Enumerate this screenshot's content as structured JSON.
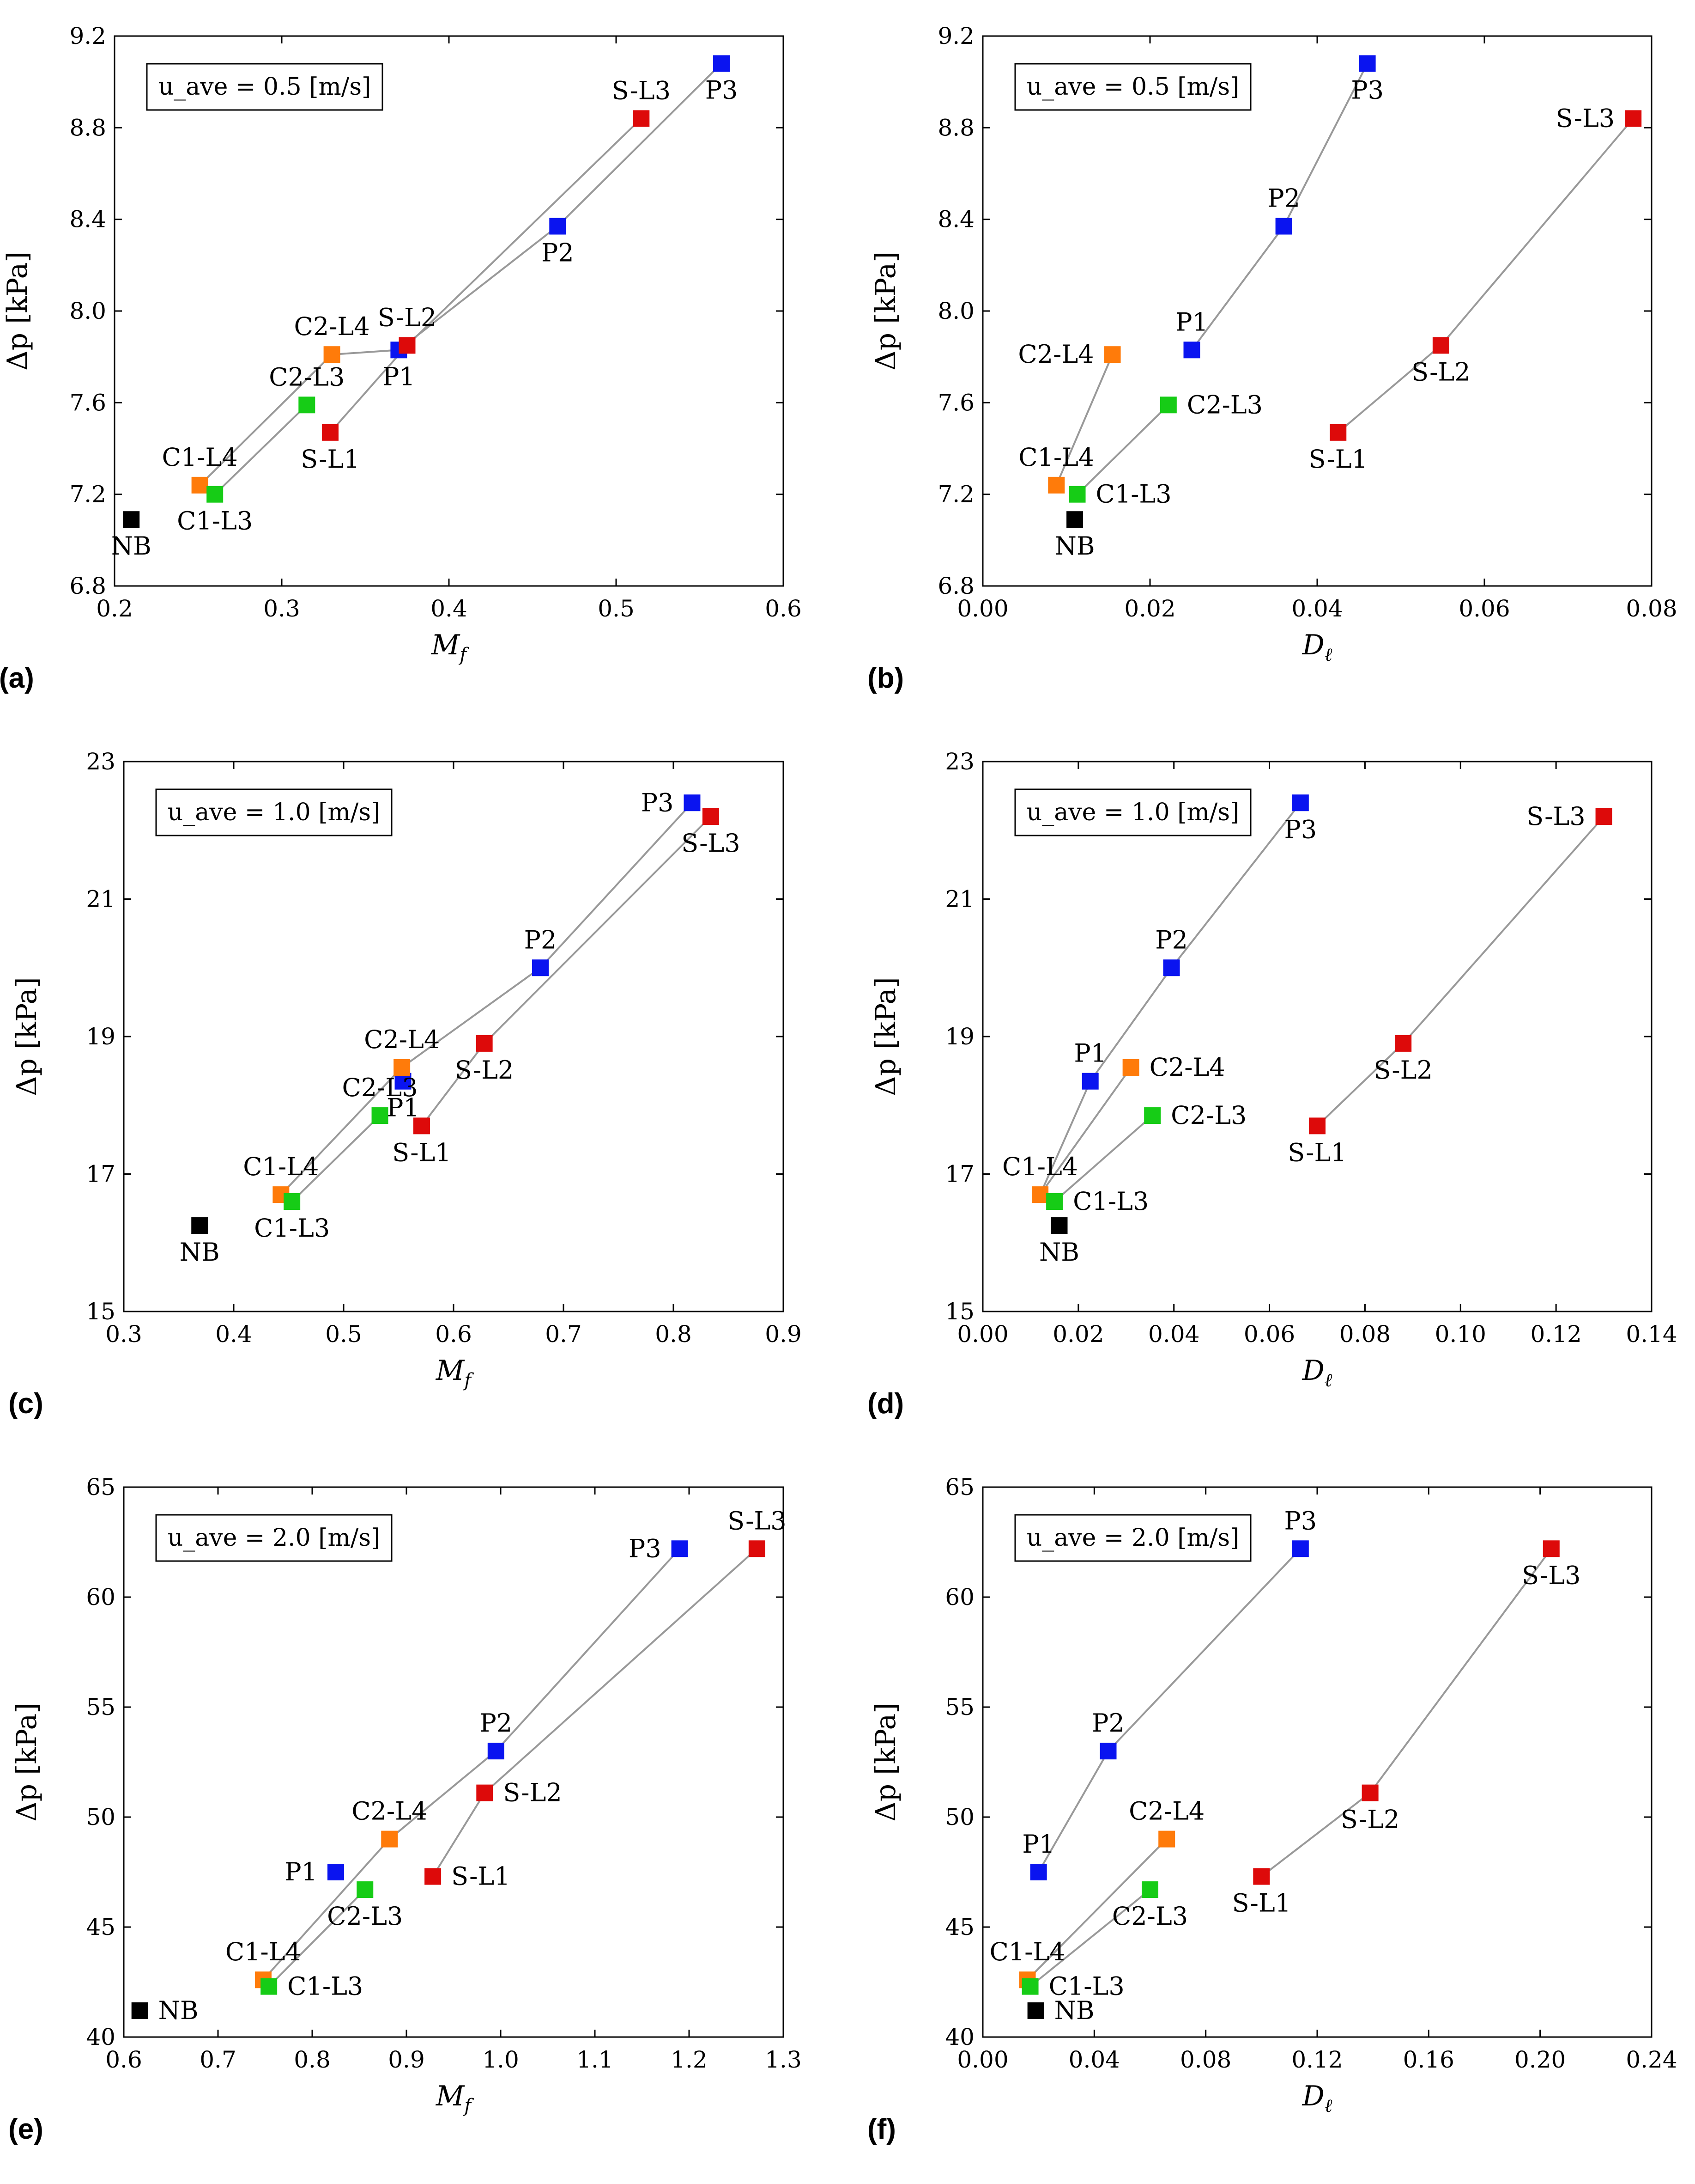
{
  "colors": {
    "P": "#0a14f0",
    "S": "#dd0a0a",
    "C4": "#ff7b0a",
    "C3": "#16cc16",
    "NB": "#000000",
    "line": "#999999"
  },
  "chart_data": [
    {
      "type": "scatter",
      "panel": "(a)",
      "annotation": "u_ave = 0.5 [m/s]",
      "xlabel": "M_f",
      "ylabel": "Δp [kPa]",
      "xlim": [
        0.2,
        0.6
      ],
      "ylim": [
        6.8,
        9.2
      ],
      "xticks": [
        "0.2",
        "0.3",
        "0.4",
        "0.5",
        "0.6"
      ],
      "yticks": [
        "6.8",
        "7.2",
        "7.6",
        "8.0",
        "8.4",
        "8.8",
        "9.2"
      ],
      "points": [
        {
          "label": "P1",
          "x": 0.37,
          "y": 7.83,
          "group": "P",
          "pos": "below"
        },
        {
          "label": "P2",
          "x": 0.465,
          "y": 8.37,
          "group": "P",
          "pos": "below"
        },
        {
          "label": "P3",
          "x": 0.563,
          "y": 9.08,
          "group": "P",
          "pos": "below"
        },
        {
          "label": "S-L1",
          "x": 0.329,
          "y": 7.47,
          "group": "S",
          "pos": "below"
        },
        {
          "label": "S-L2",
          "x": 0.375,
          "y": 7.85,
          "group": "S",
          "pos": "above"
        },
        {
          "label": "S-L3",
          "x": 0.515,
          "y": 8.84,
          "group": "S",
          "pos": "above"
        },
        {
          "label": "C1-L4",
          "x": 0.251,
          "y": 7.24,
          "group": "C4",
          "pos": "above"
        },
        {
          "label": "C2-L4",
          "x": 0.33,
          "y": 7.81,
          "group": "C4",
          "pos": "above"
        },
        {
          "label": "C1-L3",
          "x": 0.26,
          "y": 7.2,
          "group": "C3",
          "pos": "below"
        },
        {
          "label": "C2-L3",
          "x": 0.315,
          "y": 7.59,
          "group": "C3",
          "pos": "above"
        },
        {
          "label": "NB",
          "x": 0.21,
          "y": 7.09,
          "group": "NB",
          "pos": "below"
        }
      ],
      "lines": [
        [
          "C1-L4",
          "C2-L4",
          "P1",
          "P2",
          "P3"
        ],
        [
          "C1-L3",
          "C2-L3"
        ],
        [
          "S-L1",
          "S-L2",
          "S-L3"
        ]
      ]
    },
    {
      "type": "scatter",
      "panel": "(b)",
      "annotation": "u_ave = 0.5 [m/s]",
      "xlabel": "D_ℓ",
      "ylabel": "Δp [kPa]",
      "xlim": [
        0.0,
        0.08
      ],
      "ylim": [
        6.8,
        9.2
      ],
      "xticks": [
        "0.00",
        "0.02",
        "0.04",
        "0.06",
        "0.08"
      ],
      "yticks": [
        "6.8",
        "7.2",
        "7.6",
        "8.0",
        "8.4",
        "8.8",
        "9.2"
      ],
      "points": [
        {
          "label": "P1",
          "x": 0.025,
          "y": 7.83,
          "group": "P",
          "pos": "above"
        },
        {
          "label": "P2",
          "x": 0.036,
          "y": 8.37,
          "group": "P",
          "pos": "above"
        },
        {
          "label": "P3",
          "x": 0.046,
          "y": 9.08,
          "group": "P",
          "pos": "below"
        },
        {
          "label": "S-L1",
          "x": 0.0425,
          "y": 7.47,
          "group": "S",
          "pos": "below"
        },
        {
          "label": "S-L2",
          "x": 0.0548,
          "y": 7.85,
          "group": "S",
          "pos": "below"
        },
        {
          "label": "S-L3",
          "x": 0.0778,
          "y": 8.84,
          "group": "S",
          "pos": "left"
        },
        {
          "label": "C1-L4",
          "x": 0.0088,
          "y": 7.24,
          "group": "C4",
          "pos": "above"
        },
        {
          "label": "C2-L4",
          "x": 0.0155,
          "y": 7.81,
          "group": "C4",
          "pos": "left"
        },
        {
          "label": "C1-L3",
          "x": 0.0113,
          "y": 7.2,
          "group": "C3",
          "pos": "right"
        },
        {
          "label": "C2-L3",
          "x": 0.0222,
          "y": 7.59,
          "group": "C3",
          "pos": "right"
        },
        {
          "label": "NB",
          "x": 0.011,
          "y": 7.09,
          "group": "NB",
          "pos": "below"
        }
      ],
      "lines": [
        [
          "P1",
          "P2",
          "P3"
        ],
        [
          "S-L1",
          "S-L2",
          "S-L3"
        ],
        [
          "C1-L4",
          "C2-L4"
        ],
        [
          "C1-L3",
          "C2-L3"
        ]
      ]
    },
    {
      "type": "scatter",
      "panel": "(c)",
      "annotation": "u_ave = 1.0 [m/s]",
      "xlabel": "M_f",
      "ylabel": "Δp [kPa]",
      "xlim": [
        0.3,
        0.9
      ],
      "ylim": [
        15,
        23
      ],
      "xticks": [
        "0.3",
        "0.4",
        "0.5",
        "0.6",
        "0.7",
        "0.8",
        "0.9"
      ],
      "yticks": [
        "15",
        "17",
        "19",
        "21",
        "23"
      ],
      "points": [
        {
          "label": "P1",
          "x": 0.554,
          "y": 18.35,
          "group": "P",
          "pos": "below"
        },
        {
          "label": "P2",
          "x": 0.679,
          "y": 20.0,
          "group": "P",
          "pos": "above"
        },
        {
          "label": "P3",
          "x": 0.817,
          "y": 22.4,
          "group": "P",
          "pos": "left"
        },
        {
          "label": "S-L1",
          "x": 0.571,
          "y": 17.7,
          "group": "S",
          "pos": "below"
        },
        {
          "label": "S-L2",
          "x": 0.628,
          "y": 18.9,
          "group": "S",
          "pos": "below"
        },
        {
          "label": "S-L3",
          "x": 0.834,
          "y": 22.2,
          "group": "S",
          "pos": "below"
        },
        {
          "label": "C1-L4",
          "x": 0.443,
          "y": 16.7,
          "group": "C4",
          "pos": "above"
        },
        {
          "label": "C2-L4",
          "x": 0.553,
          "y": 18.55,
          "group": "C4",
          "pos": "above"
        },
        {
          "label": "C1-L3",
          "x": 0.453,
          "y": 16.6,
          "group": "C3",
          "pos": "below"
        },
        {
          "label": "C2-L3",
          "x": 0.533,
          "y": 17.85,
          "group": "C3",
          "pos": "above"
        },
        {
          "label": "NB",
          "x": 0.369,
          "y": 16.25,
          "group": "NB",
          "pos": "below"
        }
      ],
      "lines": [
        [
          "C1-L4",
          "C2-L4",
          "P2",
          "P3"
        ],
        [
          "C1-L3",
          "C2-L3"
        ],
        [
          "S-L1",
          "S-L2",
          "S-L3"
        ]
      ]
    },
    {
      "type": "scatter",
      "panel": "(d)",
      "annotation": "u_ave = 1.0 [m/s]",
      "xlabel": "D_ℓ",
      "ylabel": "Δp [kPa]",
      "xlim": [
        0.0,
        0.14
      ],
      "ylim": [
        15,
        23
      ],
      "xticks": [
        "0.00",
        "0.02",
        "0.04",
        "0.06",
        "0.08",
        "0.10",
        "0.12",
        "0.14"
      ],
      "yticks": [
        "15",
        "17",
        "19",
        "21",
        "23"
      ],
      "points": [
        {
          "label": "P1",
          "x": 0.0225,
          "y": 18.35,
          "group": "P",
          "pos": "above"
        },
        {
          "label": "P2",
          "x": 0.0395,
          "y": 20.0,
          "group": "P",
          "pos": "above"
        },
        {
          "label": "P3",
          "x": 0.0665,
          "y": 22.4,
          "group": "P",
          "pos": "below"
        },
        {
          "label": "S-L1",
          "x": 0.07,
          "y": 17.7,
          "group": "S",
          "pos": "below"
        },
        {
          "label": "S-L2",
          "x": 0.088,
          "y": 18.9,
          "group": "S",
          "pos": "below"
        },
        {
          "label": "S-L3",
          "x": 0.13,
          "y": 22.2,
          "group": "S",
          "pos": "left"
        },
        {
          "label": "C1-L4",
          "x": 0.012,
          "y": 16.7,
          "group": "C4",
          "pos": "above"
        },
        {
          "label": "C2-L4",
          "x": 0.031,
          "y": 18.55,
          "group": "C4",
          "pos": "right"
        },
        {
          "label": "C1-L3",
          "x": 0.015,
          "y": 16.6,
          "group": "C3",
          "pos": "right"
        },
        {
          "label": "C2-L3",
          "x": 0.0355,
          "y": 17.85,
          "group": "C3",
          "pos": "right"
        },
        {
          "label": "NB",
          "x": 0.016,
          "y": 16.25,
          "group": "NB",
          "pos": "below"
        }
      ],
      "lines": [
        [
          "C1-L4",
          "P1",
          "P2",
          "P3"
        ],
        [
          "S-L1",
          "S-L2",
          "S-L3"
        ],
        [
          "C1-L3",
          "C2-L3"
        ],
        [
          "C1-L4",
          "C2-L4"
        ]
      ]
    },
    {
      "type": "scatter",
      "panel": "(e)",
      "annotation": "u_ave = 2.0 [m/s]",
      "xlabel": "M_f",
      "ylabel": "Δp [kPa]",
      "xlim": [
        0.6,
        1.3
      ],
      "ylim": [
        40,
        65
      ],
      "xticks": [
        "0.6",
        "0.7",
        "0.8",
        "0.9",
        "1.0",
        "1.1",
        "1.2",
        "1.3"
      ],
      "yticks": [
        "40",
        "45",
        "50",
        "55",
        "60",
        "65"
      ],
      "points": [
        {
          "label": "P1",
          "x": 0.825,
          "y": 47.5,
          "group": "P",
          "pos": "left"
        },
        {
          "label": "P2",
          "x": 0.995,
          "y": 53.0,
          "group": "P",
          "pos": "above"
        },
        {
          "label": "P3",
          "x": 1.19,
          "y": 62.2,
          "group": "P",
          "pos": "left"
        },
        {
          "label": "S-L1",
          "x": 0.928,
          "y": 47.3,
          "group": "S",
          "pos": "right"
        },
        {
          "label": "S-L2",
          "x": 0.983,
          "y": 51.1,
          "group": "S",
          "pos": "right"
        },
        {
          "label": "S-L3",
          "x": 1.272,
          "y": 62.2,
          "group": "S",
          "pos": "above"
        },
        {
          "label": "C1-L4",
          "x": 0.748,
          "y": 42.6,
          "group": "C4",
          "pos": "above"
        },
        {
          "label": "C2-L4",
          "x": 0.882,
          "y": 49.0,
          "group": "C4",
          "pos": "above"
        },
        {
          "label": "C1-L3",
          "x": 0.754,
          "y": 42.3,
          "group": "C3",
          "pos": "right"
        },
        {
          "label": "C2-L3",
          "x": 0.856,
          "y": 46.7,
          "group": "C3",
          "pos": "below"
        },
        {
          "label": "NB",
          "x": 0.617,
          "y": 41.2,
          "group": "NB",
          "pos": "right"
        }
      ],
      "lines": [
        [
          "C1-L4",
          "C2-L4",
          "P2",
          "P3"
        ],
        [
          "C1-L3",
          "C2-L3"
        ],
        [
          "S-L1",
          "S-L2",
          "S-L3"
        ]
      ]
    },
    {
      "type": "scatter",
      "panel": "(f)",
      "annotation": "u_ave = 2.0 [m/s]",
      "xlabel": "D_ℓ",
      "ylabel": "Δp [kPa]",
      "xlim": [
        0.0,
        0.24
      ],
      "ylim": [
        40,
        65
      ],
      "xticks": [
        "0.00",
        "0.04",
        "0.08",
        "0.12",
        "0.16",
        "0.20",
        "0.24"
      ],
      "yticks": [
        "40",
        "45",
        "50",
        "55",
        "60",
        "65"
      ],
      "points": [
        {
          "label": "P1",
          "x": 0.02,
          "y": 47.5,
          "group": "P",
          "pos": "above"
        },
        {
          "label": "P2",
          "x": 0.045,
          "y": 53.0,
          "group": "P",
          "pos": "above"
        },
        {
          "label": "P3",
          "x": 0.114,
          "y": 62.2,
          "group": "P",
          "pos": "above"
        },
        {
          "label": "S-L1",
          "x": 0.1,
          "y": 47.3,
          "group": "S",
          "pos": "below"
        },
        {
          "label": "S-L2",
          "x": 0.139,
          "y": 51.1,
          "group": "S",
          "pos": "below"
        },
        {
          "label": "S-L3",
          "x": 0.204,
          "y": 62.2,
          "group": "S",
          "pos": "below"
        },
        {
          "label": "C1-L4",
          "x": 0.016,
          "y": 42.6,
          "group": "C4",
          "pos": "above"
        },
        {
          "label": "C2-L4",
          "x": 0.066,
          "y": 49.0,
          "group": "C4",
          "pos": "above"
        },
        {
          "label": "C1-L3",
          "x": 0.017,
          "y": 42.3,
          "group": "C3",
          "pos": "right"
        },
        {
          "label": "C2-L3",
          "x": 0.06,
          "y": 46.7,
          "group": "C3",
          "pos": "below"
        },
        {
          "label": "NB",
          "x": 0.019,
          "y": 41.2,
          "group": "NB",
          "pos": "right"
        }
      ],
      "lines": [
        [
          "P1",
          "P2",
          "P3"
        ],
        [
          "S-L1",
          "S-L2",
          "S-L3"
        ],
        [
          "C1-L4",
          "C2-L4"
        ],
        [
          "C1-L3",
          "C2-L3"
        ]
      ]
    }
  ]
}
